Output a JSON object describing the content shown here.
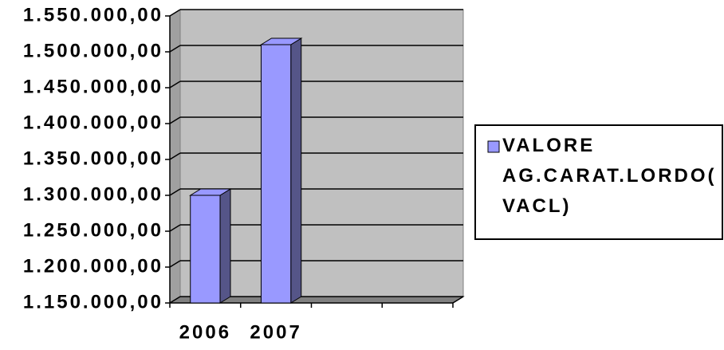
{
  "chart_data": {
    "type": "bar",
    "categories": [
      "2006",
      "2007",
      null,
      null
    ],
    "series": [
      {
        "name": "VALORE AG.CARAT.LORDO(VACL)",
        "color": "#9999ff",
        "values": [
          1300000,
          1510000,
          null,
          null
        ]
      }
    ],
    "ylim": [
      1150000,
      1550000
    ],
    "yticks": [
      {
        "value": 1150000,
        "label": "1.150.000,00"
      },
      {
        "value": 1200000,
        "label": "1.200.000,00"
      },
      {
        "value": 1250000,
        "label": "1.250.000,00"
      },
      {
        "value": 1300000,
        "label": "1.300.000,00"
      },
      {
        "value": 1350000,
        "label": "1.350.000,00"
      },
      {
        "value": 1400000,
        "label": "1.400.000,00"
      },
      {
        "value": 1450000,
        "label": "1.450.000,00"
      },
      {
        "value": 1500000,
        "label": "1.500.000,00"
      },
      {
        "value": 1550000,
        "label": "1.550.000,00"
      }
    ],
    "grid": true,
    "legend": "right"
  }
}
